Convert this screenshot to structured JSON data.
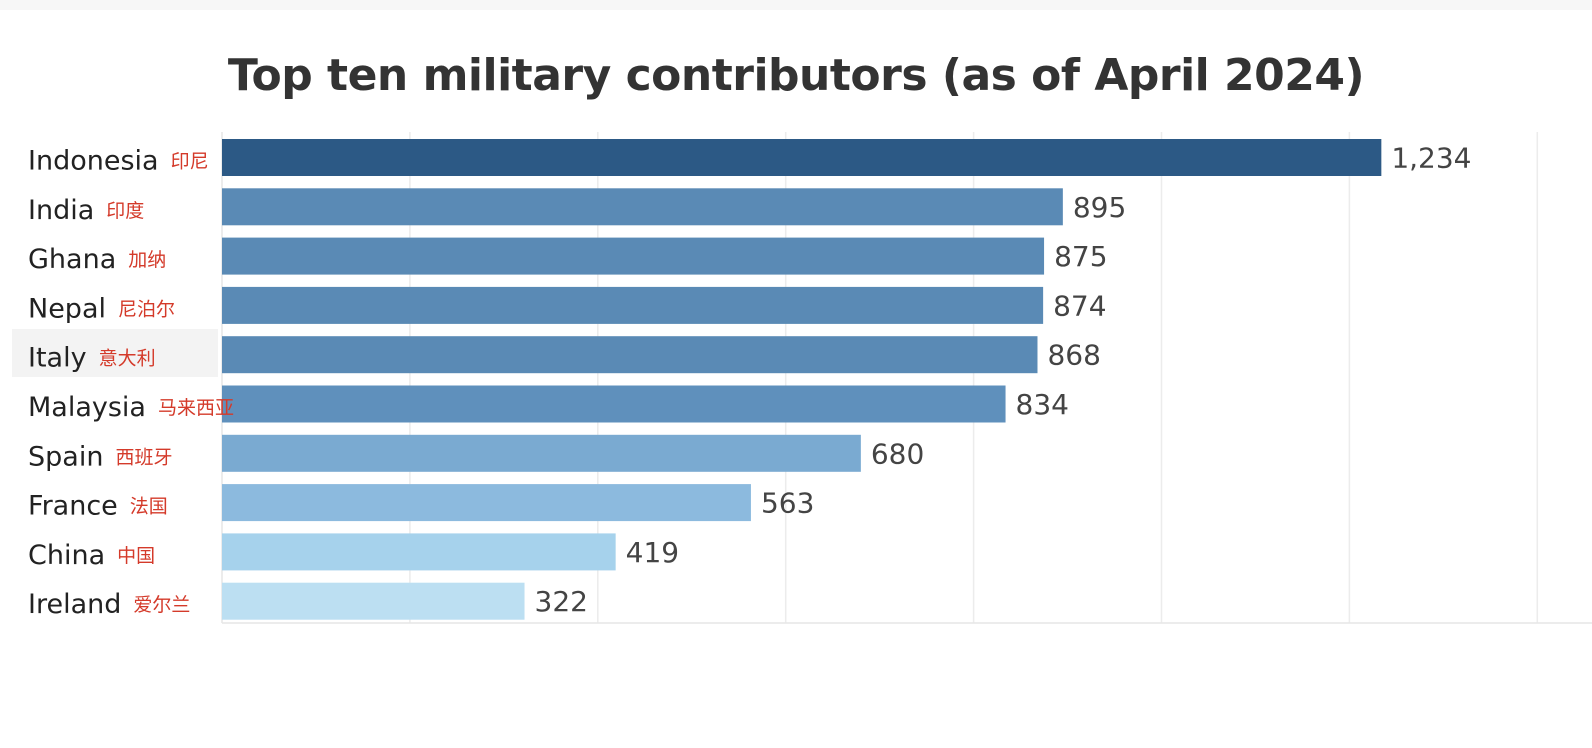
{
  "chart_data": {
    "type": "bar",
    "orientation": "horizontal",
    "title": "Top ten military contributors (as of  April 2024)",
    "categories": [
      "Indonesia",
      "India",
      "Ghana",
      "Nepal",
      "Italy",
      "Malaysia",
      "Spain",
      "France",
      "China",
      "Ireland"
    ],
    "annotations": [
      "印尼",
      "印度",
      "加纳",
      "尼泊尔",
      "意大利",
      "马来西亚",
      "西班牙",
      "法国",
      "中国",
      "爱尔兰"
    ],
    "values": [
      1234,
      895,
      875,
      874,
      868,
      834,
      680,
      563,
      419,
      322
    ],
    "value_labels": [
      "1,234",
      "895",
      "875",
      "874",
      "868",
      "834",
      "680",
      "563",
      "419",
      "322"
    ],
    "colors": [
      "#2c5985",
      "#5a8ab5",
      "#5a8ab5",
      "#5a8ab5",
      "#5a8ab5",
      "#5f90bc",
      "#7aaad1",
      "#8cbade",
      "#a6d2ec",
      "#bcdff2"
    ],
    "xlim": [
      0,
      1400
    ],
    "grid": true,
    "highlighted_category": "Italy"
  }
}
